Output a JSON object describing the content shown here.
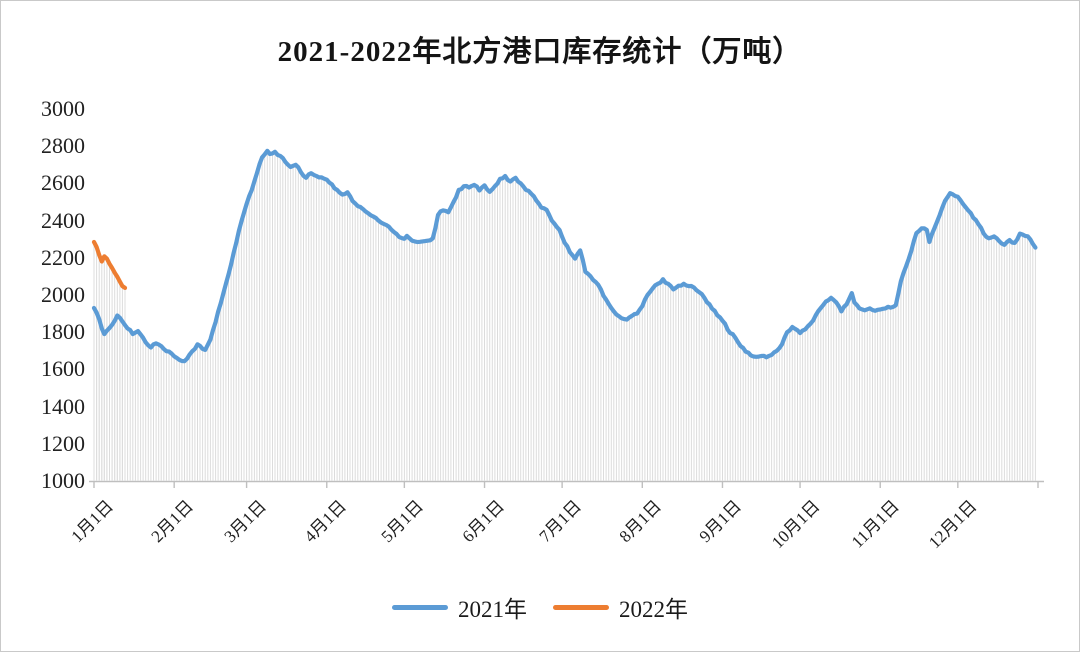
{
  "chart_data": {
    "type": "line",
    "title": "2021-2022年北方港口库存统计（万吨）",
    "unit": "万吨",
    "grid": false,
    "drop_lines": true,
    "legend_position": "bottom",
    "colors": {
      "series_2021": "#5B9BD5",
      "series_2022": "#ED7D31",
      "drop_line": "#DCDCDC",
      "axis": "#BFBFBF",
      "text": "#212121"
    },
    "y_axis": {
      "min": 1000,
      "max": 3000,
      "step": 200,
      "tick_labels": [
        "3000",
        "2800",
        "2600",
        "2400",
        "2200",
        "2000",
        "1800",
        "1600",
        "1400",
        "1200",
        "1000"
      ]
    },
    "x_axis": {
      "tick_labels": [
        "1月1日",
        "2月1日",
        "3月1日",
        "4月1日",
        "5月1日",
        "6月1日",
        "7月1日",
        "8月1日",
        "9月1日",
        "10月1日",
        "11月1日",
        "12月1日"
      ],
      "tick_days": [
        1,
        32,
        60,
        91,
        121,
        152,
        182,
        213,
        244,
        274,
        305,
        335
      ],
      "end_tick_day": 366,
      "domain_days": [
        1,
        366
      ]
    },
    "series": [
      {
        "name": "2021年",
        "color": "#5B9BD5",
        "points": [
          [
            1,
            1930
          ],
          [
            2,
            1905
          ],
          [
            3,
            1870
          ],
          [
            4,
            1820
          ],
          [
            5,
            1790
          ],
          [
            6,
            1808
          ],
          [
            8,
            1840
          ],
          [
            10,
            1890
          ],
          [
            12,
            1858
          ],
          [
            14,
            1820
          ],
          [
            16,
            1790
          ],
          [
            18,
            1806
          ],
          [
            19,
            1788
          ],
          [
            21,
            1745
          ],
          [
            23,
            1718
          ],
          [
            25,
            1740
          ],
          [
            27,
            1725
          ],
          [
            29,
            1698
          ],
          [
            31,
            1685
          ],
          [
            33,
            1662
          ],
          [
            35,
            1645
          ],
          [
            37,
            1658
          ],
          [
            39,
            1698
          ],
          [
            41,
            1735
          ],
          [
            43,
            1710
          ],
          [
            44,
            1705
          ],
          [
            46,
            1760
          ],
          [
            48,
            1855
          ],
          [
            50,
            1955
          ],
          [
            52,
            2060
          ],
          [
            54,
            2165
          ],
          [
            56,
            2280
          ],
          [
            58,
            2395
          ],
          [
            60,
            2490
          ],
          [
            62,
            2565
          ],
          [
            64,
            2655
          ],
          [
            66,
            2740
          ],
          [
            68,
            2775
          ],
          [
            69,
            2758
          ],
          [
            71,
            2770
          ],
          [
            73,
            2748
          ],
          [
            75,
            2715
          ],
          [
            77,
            2688
          ],
          [
            79,
            2700
          ],
          [
            81,
            2660
          ],
          [
            83,
            2630
          ],
          [
            85,
            2655
          ],
          [
            87,
            2640
          ],
          [
            89,
            2632
          ],
          [
            91,
            2620
          ],
          [
            93,
            2595
          ],
          [
            95,
            2565
          ],
          [
            97,
            2540
          ],
          [
            99,
            2552
          ],
          [
            101,
            2505
          ],
          [
            103,
            2478
          ],
          [
            105,
            2462
          ],
          [
            107,
            2440
          ],
          [
            109,
            2422
          ],
          [
            111,
            2400
          ],
          [
            113,
            2382
          ],
          [
            115,
            2368
          ],
          [
            117,
            2338
          ],
          [
            119,
            2312
          ],
          [
            121,
            2302
          ],
          [
            122,
            2318
          ],
          [
            124,
            2292
          ],
          [
            126,
            2285
          ],
          [
            128,
            2288
          ],
          [
            130,
            2292
          ],
          [
            132,
            2305
          ],
          [
            133,
            2360
          ],
          [
            134,
            2430
          ],
          [
            135,
            2450
          ],
          [
            137,
            2452
          ],
          [
            138,
            2445
          ],
          [
            140,
            2500
          ],
          [
            142,
            2565
          ],
          [
            144,
            2585
          ],
          [
            146,
            2578
          ],
          [
            148,
            2592
          ],
          [
            150,
            2562
          ],
          [
            151,
            2578
          ],
          [
            152,
            2590
          ],
          [
            154,
            2555
          ],
          [
            156,
            2585
          ],
          [
            158,
            2625
          ],
          [
            160,
            2640
          ],
          [
            162,
            2610
          ],
          [
            164,
            2630
          ],
          [
            166,
            2600
          ],
          [
            168,
            2565
          ],
          [
            170,
            2545
          ],
          [
            172,
            2508
          ],
          [
            174,
            2470
          ],
          [
            176,
            2458
          ],
          [
            178,
            2400
          ],
          [
            180,
            2365
          ],
          [
            181,
            2350
          ],
          [
            183,
            2280
          ],
          [
            185,
            2230
          ],
          [
            187,
            2195
          ],
          [
            189,
            2240
          ],
          [
            191,
            2125
          ],
          [
            193,
            2100
          ],
          [
            195,
            2070
          ],
          [
            197,
            2030
          ],
          [
            199,
            1975
          ],
          [
            201,
            1930
          ],
          [
            203,
            1895
          ],
          [
            205,
            1875
          ],
          [
            207,
            1868
          ],
          [
            209,
            1888
          ],
          [
            211,
            1900
          ],
          [
            213,
            1940
          ],
          [
            215,
            2000
          ],
          [
            217,
            2035
          ],
          [
            219,
            2060
          ],
          [
            221,
            2085
          ],
          [
            223,
            2060
          ],
          [
            225,
            2030
          ],
          [
            227,
            2050
          ],
          [
            229,
            2060
          ],
          [
            231,
            2048
          ],
          [
            233,
            2040
          ],
          [
            235,
            2015
          ],
          [
            237,
            1985
          ],
          [
            239,
            1950
          ],
          [
            241,
            1915
          ],
          [
            243,
            1880
          ],
          [
            245,
            1845
          ],
          [
            247,
            1795
          ],
          [
            249,
            1770
          ],
          [
            251,
            1725
          ],
          [
            253,
            1695
          ],
          [
            255,
            1675
          ],
          [
            257,
            1668
          ],
          [
            259,
            1672
          ],
          [
            261,
            1665
          ],
          [
            263,
            1678
          ],
          [
            265,
            1700
          ],
          [
            267,
            1735
          ],
          [
            269,
            1800
          ],
          [
            271,
            1828
          ],
          [
            273,
            1810
          ],
          [
            274,
            1795
          ],
          [
            276,
            1815
          ],
          [
            278,
            1845
          ],
          [
            280,
            1890
          ],
          [
            282,
            1930
          ],
          [
            284,
            1965
          ],
          [
            286,
            1985
          ],
          [
            288,
            1960
          ],
          [
            290,
            1912
          ],
          [
            292,
            1950
          ],
          [
            294,
            2010
          ],
          [
            295,
            1960
          ],
          [
            297,
            1928
          ],
          [
            299,
            1918
          ],
          [
            301,
            1928
          ],
          [
            303,
            1915
          ],
          [
            305,
            1922
          ],
          [
            307,
            1928
          ],
          [
            309,
            1932
          ],
          [
            311,
            1945
          ],
          [
            313,
            2075
          ],
          [
            315,
            2155
          ],
          [
            317,
            2237
          ],
          [
            319,
            2333
          ],
          [
            321,
            2358
          ],
          [
            323,
            2350
          ],
          [
            324,
            2285
          ],
          [
            326,
            2360
          ],
          [
            328,
            2430
          ],
          [
            330,
            2505
          ],
          [
            332,
            2548
          ],
          [
            334,
            2532
          ],
          [
            335,
            2528
          ],
          [
            337,
            2490
          ],
          [
            339,
            2455
          ],
          [
            341,
            2415
          ],
          [
            343,
            2380
          ],
          [
            345,
            2330
          ],
          [
            347,
            2305
          ],
          [
            349,
            2315
          ],
          [
            351,
            2290
          ],
          [
            353,
            2270
          ],
          [
            355,
            2295
          ],
          [
            357,
            2280
          ],
          [
            359,
            2330
          ],
          [
            361,
            2318
          ],
          [
            363,
            2300
          ],
          [
            364,
            2275
          ],
          [
            365,
            2255
          ]
        ]
      },
      {
        "name": "2022年",
        "color": "#ED7D31",
        "points": [
          [
            1,
            2285
          ],
          [
            2,
            2258
          ],
          [
            3,
            2215
          ],
          [
            4,
            2180
          ],
          [
            5,
            2208
          ],
          [
            6,
            2195
          ],
          [
            7,
            2168
          ],
          [
            8,
            2145
          ],
          [
            9,
            2120
          ],
          [
            10,
            2098
          ],
          [
            11,
            2072
          ],
          [
            12,
            2048
          ],
          [
            13,
            2038
          ]
        ]
      }
    ]
  }
}
